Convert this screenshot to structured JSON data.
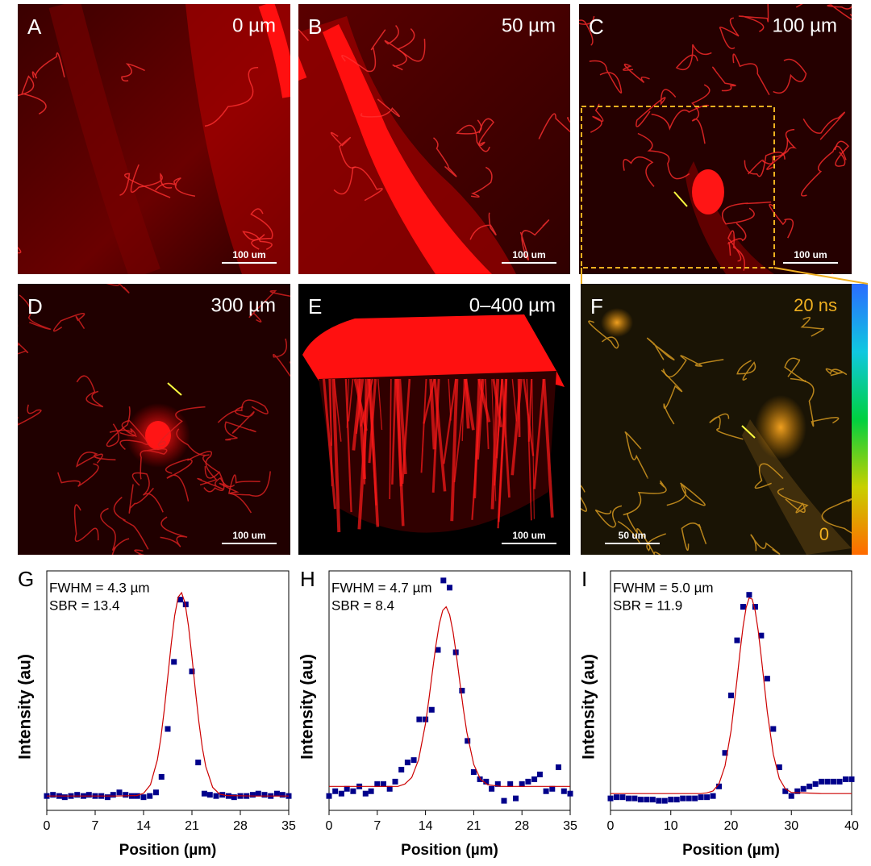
{
  "image_panels": [
    {
      "label": "A",
      "depth": "0 µm",
      "scale_bar": "100 um"
    },
    {
      "label": "B",
      "depth": "50 µm",
      "scale_bar": "100 um"
    },
    {
      "label": "C",
      "depth": "100 µm",
      "scale_bar": "100 um"
    },
    {
      "label": "D",
      "depth": "300 µm",
      "scale_bar": "100 um"
    },
    {
      "label": "E",
      "depth": "0–400 µm",
      "scale_bar": "100 um"
    },
    {
      "label": "F",
      "depth": "20 ns",
      "colorbar_min": "0",
      "scale_bar": "50 um"
    }
  ],
  "chart_data": [
    {
      "type": "scatter",
      "panel_label": "G",
      "annotations": [
        "FWHM = 4.3 µm",
        "SBR = 13.4"
      ],
      "xlabel": "Position (µm)",
      "ylabel": "Intensity (au)",
      "xlim": [
        0,
        35
      ],
      "xticks": [
        0,
        7,
        14,
        21,
        28,
        35
      ],
      "ylim": [
        0,
        1
      ],
      "series": [
        {
          "color": "#00008b",
          "marker": "square",
          "x": [
            0,
            0.9,
            1.8,
            2.6,
            3.5,
            4.4,
            5.3,
            6.1,
            7,
            7.9,
            8.8,
            9.6,
            10.5,
            11.4,
            12.3,
            13.1,
            14,
            14.9,
            15.8,
            16.6,
            17.5,
            18.4,
            19.3,
            20.1,
            21,
            21.9,
            22.8,
            23.6,
            24.5,
            25.4,
            26.3,
            27.1,
            28,
            28.9,
            29.8,
            30.6,
            31.5,
            32.4,
            33.3,
            34.1,
            35
          ],
          "values": [
            0.06,
            0.065,
            0.06,
            0.055,
            0.06,
            0.065,
            0.06,
            0.065,
            0.06,
            0.06,
            0.055,
            0.065,
            0.075,
            0.065,
            0.06,
            0.06,
            0.055,
            0.06,
            0.075,
            0.14,
            0.34,
            0.62,
            0.88,
            0.86,
            0.58,
            0.2,
            0.07,
            0.065,
            0.06,
            0.065,
            0.06,
            0.055,
            0.06,
            0.06,
            0.065,
            0.07,
            0.065,
            0.06,
            0.07,
            0.065,
            0.06
          ]
        },
        {
          "color": "#cc0000",
          "marker": "line",
          "x": [
            0,
            5,
            10,
            13,
            14,
            15,
            16,
            16.5,
            17,
            17.5,
            18,
            18.5,
            19,
            19.5,
            20,
            20.5,
            21,
            21.5,
            22,
            22.5,
            23,
            24,
            25,
            26,
            30,
            35
          ],
          "values": [
            0.06,
            0.06,
            0.06,
            0.062,
            0.071,
            0.107,
            0.211,
            0.302,
            0.42,
            0.556,
            0.694,
            0.813,
            0.89,
            0.909,
            0.866,
            0.77,
            0.64,
            0.5,
            0.37,
            0.262,
            0.183,
            0.096,
            0.068,
            0.062,
            0.06,
            0.06
          ]
        }
      ]
    },
    {
      "type": "scatter",
      "panel_label": "H",
      "annotations": [
        "FWHM = 4.7 µm",
        "SBR = 8.4"
      ],
      "xlabel": "Position (µm)",
      "ylabel": "Intensity (au)",
      "xlim": [
        0,
        35
      ],
      "xticks": [
        0,
        7,
        14,
        21,
        28,
        35
      ],
      "ylim": [
        0,
        1
      ],
      "series": [
        {
          "color": "#00008b",
          "marker": "square",
          "x": [
            0,
            0.9,
            1.8,
            2.6,
            3.5,
            4.4,
            5.3,
            6.1,
            7,
            7.9,
            8.8,
            9.6,
            10.5,
            11.4,
            12.3,
            13.1,
            14,
            14.9,
            15.8,
            16.6,
            17.5,
            18.4,
            19.3,
            20.1,
            21,
            21.9,
            22.8,
            23.6,
            24.5,
            25.4,
            26.3,
            27.1,
            28,
            28.9,
            29.8,
            30.6,
            31.5,
            32.4,
            33.3,
            34.1,
            35
          ],
          "values": [
            0.06,
            0.08,
            0.07,
            0.09,
            0.08,
            0.1,
            0.07,
            0.08,
            0.11,
            0.11,
            0.09,
            0.12,
            0.17,
            0.2,
            0.21,
            0.38,
            0.38,
            0.42,
            0.67,
            0.96,
            0.93,
            0.66,
            0.5,
            0.29,
            0.16,
            0.13,
            0.12,
            0.09,
            0.11,
            0.04,
            0.11,
            0.05,
            0.11,
            0.12,
            0.13,
            0.15,
            0.08,
            0.09,
            0.18,
            0.08,
            0.07
          ]
        },
        {
          "color": "#cc0000",
          "marker": "line",
          "x": [
            0,
            5,
            10,
            11,
            12,
            13,
            14,
            14.5,
            15,
            15.5,
            16,
            16.5,
            17,
            17.5,
            18,
            18.5,
            19,
            19.5,
            20,
            21,
            22,
            23,
            25,
            30,
            35
          ],
          "values": [
            0.1,
            0.1,
            0.1,
            0.11,
            0.137,
            0.212,
            0.362,
            0.465,
            0.578,
            0.687,
            0.778,
            0.835,
            0.85,
            0.817,
            0.745,
            0.645,
            0.532,
            0.422,
            0.326,
            0.192,
            0.129,
            0.107,
            0.1,
            0.1,
            0.1
          ]
        }
      ]
    },
    {
      "type": "scatter",
      "panel_label": "I",
      "annotations": [
        "FWHM = 5.0 µm",
        "SBR = 11.9"
      ],
      "xlabel": "Position (µm)",
      "ylabel": "Intensity (au)",
      "xlim": [
        0,
        40
      ],
      "xticks": [
        0,
        10,
        20,
        30,
        40
      ],
      "ylim": [
        0,
        1
      ],
      "series": [
        {
          "color": "#00008b",
          "marker": "square",
          "x": [
            0,
            1,
            2,
            3,
            4,
            5,
            6,
            7,
            8,
            9,
            10,
            11,
            12,
            13,
            14,
            15,
            16,
            17,
            18,
            19,
            20,
            21,
            22,
            23,
            24,
            25,
            26,
            27,
            28,
            29,
            30,
            31,
            32,
            33,
            34,
            35,
            36,
            37,
            38,
            39,
            40
          ],
          "values": [
            0.05,
            0.055,
            0.055,
            0.05,
            0.05,
            0.045,
            0.045,
            0.045,
            0.04,
            0.04,
            0.045,
            0.045,
            0.05,
            0.05,
            0.05,
            0.055,
            0.055,
            0.06,
            0.1,
            0.24,
            0.48,
            0.71,
            0.85,
            0.9,
            0.85,
            0.73,
            0.55,
            0.34,
            0.18,
            0.08,
            0.06,
            0.08,
            0.09,
            0.1,
            0.11,
            0.12,
            0.12,
            0.12,
            0.12,
            0.13,
            0.13
          ]
        },
        {
          "color": "#cc0000",
          "marker": "line",
          "x": [
            0,
            10,
            15,
            16,
            17,
            18,
            19,
            20,
            21,
            21.5,
            22,
            22.5,
            23,
            23.5,
            24,
            24.5,
            25,
            26,
            27,
            28,
            29,
            30,
            35,
            40
          ],
          "values": [
            0.07,
            0.07,
            0.07,
            0.073,
            0.081,
            0.111,
            0.186,
            0.333,
            0.549,
            0.665,
            0.769,
            0.847,
            0.887,
            0.882,
            0.833,
            0.75,
            0.642,
            0.413,
            0.235,
            0.133,
            0.09,
            0.075,
            0.07,
            0.07
          ]
        }
      ]
    }
  ]
}
